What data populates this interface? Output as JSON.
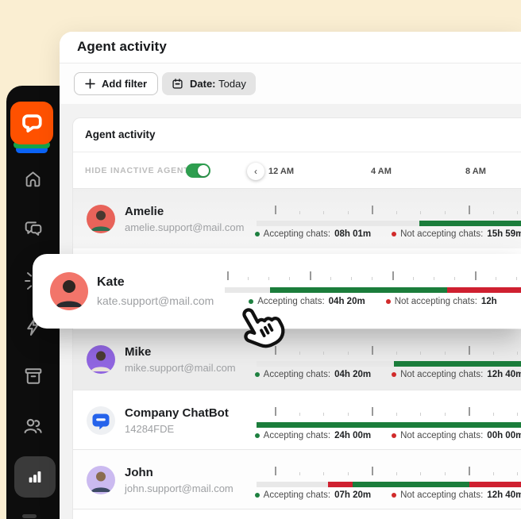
{
  "window": {
    "title": "Agent activity"
  },
  "filters": {
    "add_filter_label": "Add filter",
    "date_label": "Date:",
    "date_value": "Today"
  },
  "panel": {
    "section_title": "Agent activity",
    "hide_inactive_label": "HIDE INACTIVE AGENTS",
    "toggle_on": true,
    "nav_back": "‹",
    "time_labels": [
      "12 AM",
      "4 AM",
      "8 AM"
    ]
  },
  "legend_labels": {
    "accepting": "Accepting chats:",
    "not_accepting": "Not accepting chats:"
  },
  "sidebar_icons": [
    "livechat-logo",
    "home-icon",
    "chat-bubbles-icon",
    "spark-icon",
    "lightning-icon",
    "archive-box-icon",
    "team-icon",
    "bar-chart-icon"
  ],
  "agents": [
    {
      "name": "Amelie",
      "email": "amelie.support@mail.com",
      "accepting": "08h 01m",
      "not_accepting": "15h 59m",
      "avatar_bg": "#e8635a",
      "segments": [
        {
          "color": "track",
          "pct": 61.4
        },
        {
          "color": "green",
          "pct": 38.6
        }
      ]
    },
    {
      "name": "Kate",
      "email": "kate.support@mail.com",
      "accepting": "04h 20m",
      "not_accepting": "12h",
      "avatar_bg": "#f2756a",
      "segments": [
        {
          "color": "track",
          "pct": 15.3
        },
        {
          "color": "green",
          "pct": 59.8
        },
        {
          "color": "red",
          "pct": 24.9
        }
      ]
    },
    {
      "name": "Mike",
      "email": "mike.support@mail.com",
      "accepting": "04h 20m",
      "not_accepting": "12h 40m",
      "avatar_bg": "#9065e0",
      "segments": [
        {
          "color": "track",
          "pct": 51.8
        },
        {
          "color": "green",
          "pct": 48.2
        }
      ]
    },
    {
      "name": "Company ChatBot",
      "email": "14284FDE",
      "accepting": "24h 00m",
      "not_accepting": "00h 00m",
      "avatar_bg": "#eef0f3",
      "segments": [
        {
          "color": "green",
          "pct": 100
        }
      ]
    },
    {
      "name": "John",
      "email": "john.support@mail.com",
      "accepting": "07h 20m",
      "not_accepting": "12h 40m",
      "avatar_bg": "#cbbaf0",
      "segments": [
        {
          "color": "track",
          "pct": 26.9
        },
        {
          "color": "red",
          "pct": 9.3
        },
        {
          "color": "green",
          "pct": 44.0
        },
        {
          "color": "red",
          "pct": 19.8
        }
      ]
    }
  ],
  "colors": {
    "track": "#e8e8e8",
    "green": "#1b7d3b",
    "red": "#cf2030",
    "toggle_green": "#2e9e4f",
    "brand_orange": "#ff5100",
    "background_cream": "#faeed2",
    "sidebar_black": "#0d0d0d"
  }
}
